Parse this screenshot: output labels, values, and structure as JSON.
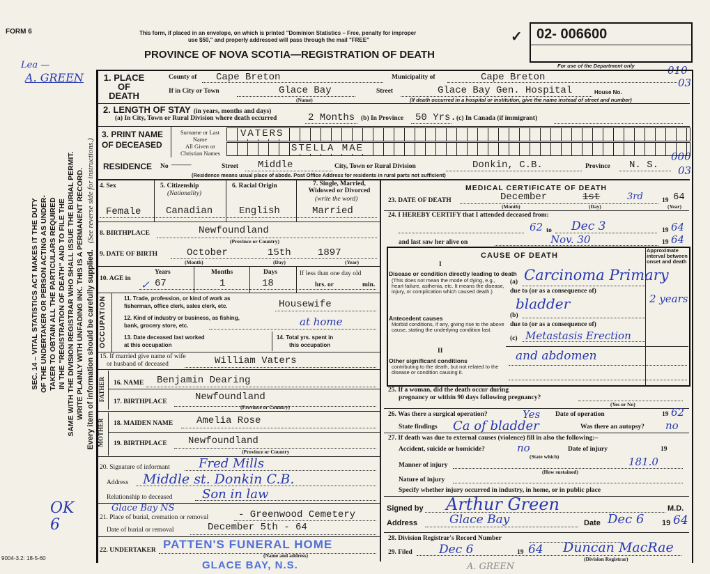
{
  "header": {
    "form_no": "FORM 6",
    "notice_line1": "This form, if placed in an envelope, on which is printed \"Dominion Statistics – Free, penalty for improper",
    "notice_line2": "use $50,\" and properly addressed will pass through the mail \"FREE\"",
    "title": "PROVINCE OF NOVA SCOTIA—REGISTRATION OF DEATH",
    "registration_number": "02- 006600",
    "dept_only": "For use of the Department only",
    "check_mark": "✓",
    "margin_codes": [
      "010",
      "03",
      "000",
      "03"
    ]
  },
  "margin": {
    "handwritten_top": "Lea —",
    "handwritten_name": "A. GREEN",
    "law_lines": [
      "SEC. 14 – VITAL STATISTICS ACT MAKES IT THE DUTY",
      "OF THE UNDERTAKER OR PERSON ACTING AS UNDER-",
      "TAKER TO OBTAIN ALL THE PARTICULARS REQUIRED",
      "IN THE \"REGISTRATION OF DEATH\" AND TO FILE THE",
      "SAME WITH THE DIVISION REGISTRAR WHO SHALL ISSUE THE BURIAL PERMIT.",
      "WRITE PLAINLY WITH UNFADING INK. THIS IS A PERMANENT RECORD."
    ],
    "every_item": "Every item of information should be carefully supplied.",
    "see_reverse": "(See reverse side for instructions.)",
    "handwritten_bottom": "OK 6"
  },
  "place": {
    "label": "1. PLACE OF DEATH",
    "county_label": "County of",
    "county": "Cape Breton",
    "municipality_label": "Municipality of",
    "municipality": "Cape Breton",
    "city_label": "If in City or Town",
    "city": "Glace Bay",
    "name_note": "(Name)",
    "street_label": "Street",
    "street": "Glace Bay Gen. Hospital",
    "house_label": "House No.",
    "hospital_note": "(If death occurred in a hospital or institution, give the name instead of street and number)"
  },
  "stay": {
    "label": "2. LENGTH OF STAY",
    "label_note": "(in years, months and days)",
    "a_label": "(a) In City, Town or Rural Division where death occurred",
    "a": "2 Months",
    "b_label": "(b) In Province",
    "b": "50 Yrs.",
    "c_label": "(c) In Canada (if immigrant)"
  },
  "name": {
    "label": "3. PRINT NAME OF DECEASED",
    "surname_label": "Surname or Last Name",
    "surname": "VATERS",
    "given_label": "All Given or Christian Names",
    "given": "STELLA MAE"
  },
  "residence": {
    "label": "RESIDENCE",
    "no_label": "No",
    "no": "———",
    "street_label": "Street",
    "street": "Middle",
    "city_label": "City, Town or Rural Division",
    "city": "Donkin, C.B.",
    "province_label": "Province",
    "province": "N. S.",
    "note": "(Residence means usual place of abode. Post Office Address for residents in rural parts not sufficient)"
  },
  "personal": {
    "sex_label": "4. Sex",
    "sex": "Female",
    "citizenship_label": "5. Citizenship",
    "citizenship_note": "(Nationality)",
    "citizenship": "Canadian",
    "racial_label": "6. Racial Origin",
    "racial": "English",
    "marital_label": "7. Single, Married, Widowed or Divorced",
    "marital_note": "(write the word)",
    "marital": "Married",
    "birthplace_label": "8. BIRTHPLACE",
    "birthplace": "Newfoundland",
    "province_note": "(Province or Country)",
    "dob_label": "9. DATE OF BIRTH",
    "dob_month": "October",
    "dob_day": "15th",
    "dob_year": "1897",
    "month_note": "(Month)",
    "day_note": "(Day)",
    "year_note": "(Year)",
    "age_label": "10. AGE in",
    "years_label": "Years",
    "years": "67",
    "months_label": "Months",
    "months": "1",
    "days_label": "Days",
    "days": "18",
    "less_label": "If less than one day old",
    "hrs_label": "hrs. or",
    "min_label": "min."
  },
  "occupation": {
    "side": "OCCUPATION",
    "q11": "11. Trade, profession, or kind of work as",
    "q11b": "fisherman, office clerk, sales clerk, etc.",
    "trade": "Housewife",
    "q12": "12. Kind of industry or business, as fishing,",
    "q12b": "bank, grocery store, etc.",
    "industry": "at home",
    "q13": "13. Date deceased last worked",
    "q13b": "at this occupation",
    "q14": "14. Total yrs. spent in",
    "q14b": "this occupation"
  },
  "spouse": {
    "q15": "15. If married give name of wife",
    "q15b": "or husband of deceased",
    "name": "William Vaters"
  },
  "father": {
    "side": "FATHER",
    "name_label": "16. NAME",
    "name": "Benjamin Dearing",
    "bp_label": "17. BIRTHPLACE",
    "birthplace": "Newfoundland",
    "note": "(Province or Country)"
  },
  "mother": {
    "side": "MOTHER",
    "name_label": "18. MAIDEN NAME",
    "name": "Amelia Rose",
    "bp_label": "19. BIRTHPLACE",
    "birthplace": "Newfoundland",
    "note": "(Province or Country"
  },
  "informant": {
    "sig_label": "20. Signature of informant",
    "signature": "Fred Mills",
    "addr_label": "Address",
    "address": "Middle st. Donkin C.B.",
    "rel_label": "Relationship to deceased",
    "relationship": "Son in law"
  },
  "burial": {
    "place_label": "21. Place of burial, cremation or removal",
    "place_hw": "Glace Bay NS",
    "place": "- Greenwood Cemetery",
    "date_label": "Date of burial or removal",
    "date": "December 5th - 64"
  },
  "undertaker": {
    "label": "22. UNDERTAKER",
    "stamp1": "PATTEN'S FUNERAL HOME",
    "stamp2": "GLACE BAY, N.S.",
    "note": "(Name and address)"
  },
  "footer": {
    "code": "9004-3.2: 18-5-60",
    "hw": "A. GREEN"
  },
  "medical": {
    "title": "MEDICAL CERTIFICATE OF DEATH",
    "dod_label": "23. DATE OF DEATH",
    "dod_month": "December",
    "dod_day_struck": "1st",
    "dod_day": "3rd",
    "dod_year_prefix": "19",
    "dod_year": "64",
    "certify": "24. I HEREBY CERTIFY that I attended deceased from:",
    "from": "62",
    "to_label": "to",
    "to": "Dec 3",
    "to_year": "64",
    "last_saw_label": "and last saw her alive on",
    "last_saw": "Nov. 30",
    "last_saw_year": "64",
    "cause_title": "CAUSE OF DEATH",
    "interval_label": "Approximate interval between onset and death",
    "part1": "I",
    "part2": "II",
    "direct_title": "Disease or condition directly leading to death",
    "direct_note": "(This does not mean the mode of dying, e.g., heart failure, asthenia, etc. It means the disease, injury, or complication which caused death.)",
    "antecedent_title": "Antecedent causes",
    "antecedent_note": "Morbid conditions, if any, giving rise to the above cause, stating the underlying condition last.",
    "other_title": "Other significant conditions",
    "other_note": "contributing to the death, but not related to the disease or condition causing it.",
    "a_label": "(a)",
    "b_label": "(b)",
    "c_label": "(c)",
    "due_to": "due to (or as a consequence of)",
    "cause_a": "Carcinoma Primary",
    "cause_a2": "bladder",
    "interval": "2 years",
    "cause_c": "Metastasis Erection",
    "cause_c2": "and abdomen",
    "q25": "25. If a woman, did the death occur during",
    "q25b": "pregnancy or within 90 days following pregnancy?",
    "yes_no": "(Yes or No)",
    "q26": "26. Was there a surgical operation?",
    "operation": "Yes",
    "op_date_label": "Date of operation",
    "op_year": "62",
    "findings_label": "State findings",
    "findings": "Ca of bladder",
    "autopsy_label": "Was there an autopsy?",
    "autopsy": "no",
    "q27": "27. If death was due to external causes (violence) fill in also the following:–",
    "accident_label": "Accident, suicide or homicide?",
    "accident": "no",
    "state_which": "(State which)",
    "injury_date_label": "Date of injury",
    "manner_label": "Manner of injury",
    "manner_code": "181.0",
    "how": "(How sustained)",
    "nature_label": "Nature of injury",
    "specify_label": "Specify whether injury occurred in industry, in home, or in public place",
    "signed_label": "Signed by",
    "signed": "Arthur Green",
    "md": "M.D.",
    "address_label": "Address",
    "address": "Glace Bay",
    "date_label": "Date",
    "date": "Dec 6",
    "date_year": "64",
    "q28": "28. Division Registrar's Record Number",
    "q29": "29. Filed",
    "filed": "Dec 6",
    "filed_year": "64",
    "registrar": "Duncan MacRae",
    "registrar_note": "(Division Registrar)"
  }
}
